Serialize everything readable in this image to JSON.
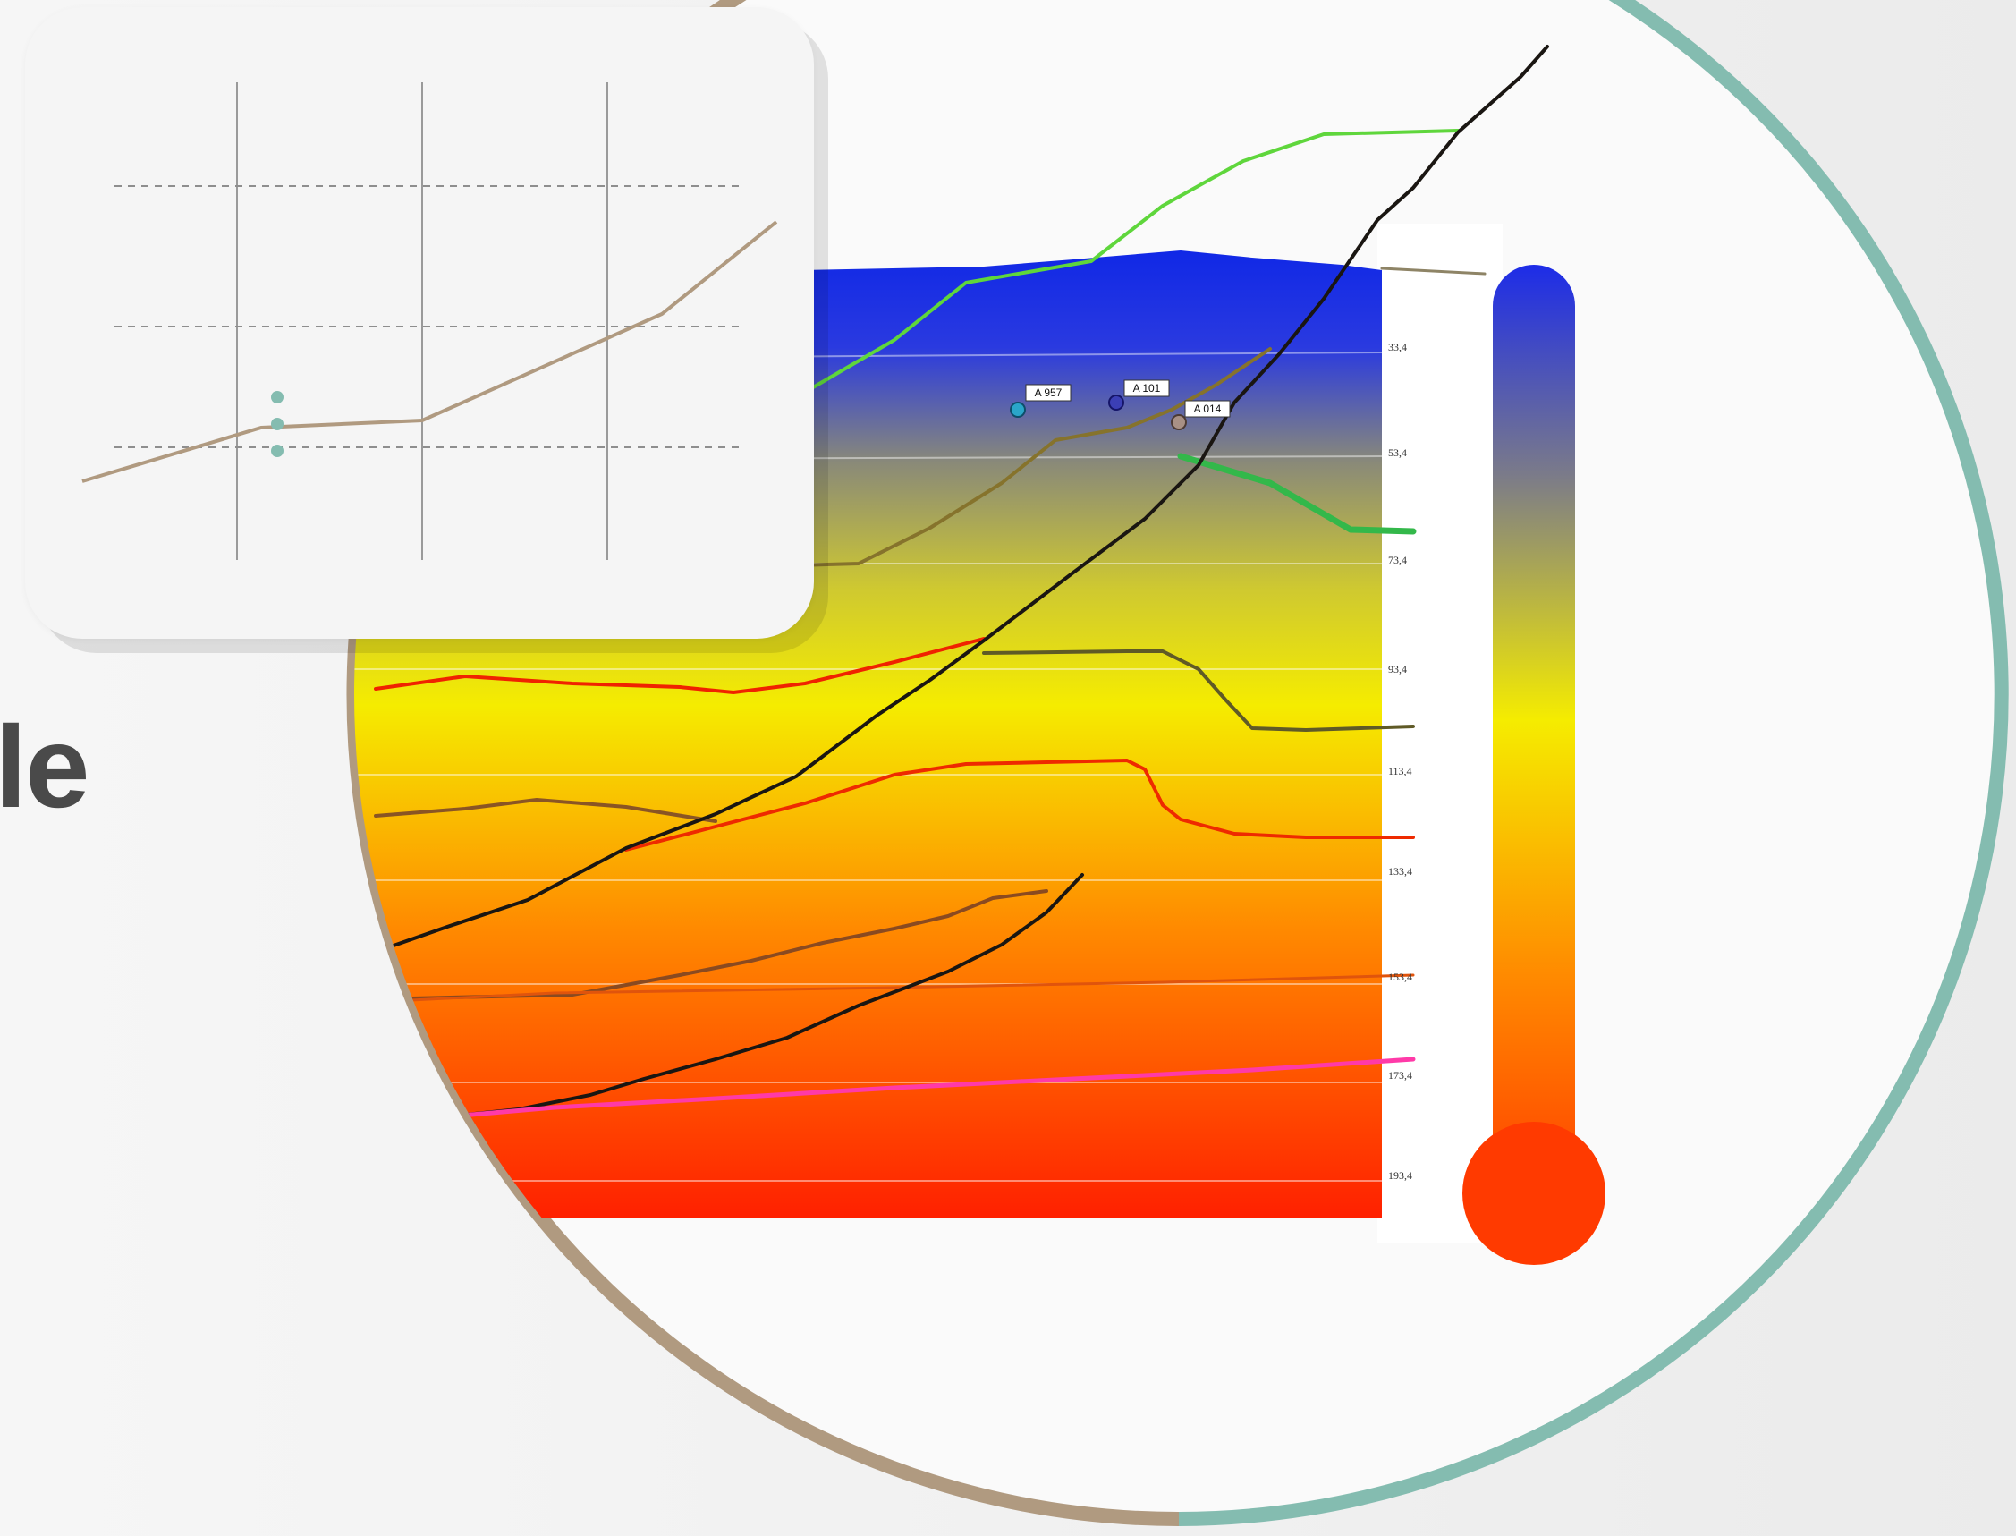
{
  "heading": {
    "text": "le"
  },
  "temperature_chart": {
    "depth_labels": [
      "33,4",
      "53,4",
      "73,4",
      "93,4",
      "113,4",
      "133,4",
      "153,4",
      "173,4",
      "193,4"
    ],
    "markers": [
      {
        "label": "A 957",
        "color": "#2aa6c9"
      },
      {
        "label": "A 101",
        "color": "#3b3fb5"
      },
      {
        "label": "A 014",
        "color": "#a89085"
      }
    ],
    "colors": {
      "gradient_top": "#1028e6",
      "gradient_mid_gray": "#8a8a78",
      "gradient_yellow": "#f5ec00",
      "gradient_orange": "#ff8a00",
      "gradient_bottom": "#ff2000"
    }
  },
  "thermometer": {
    "icon": "thermometer-icon",
    "colors": {
      "top": "#1d2ce8",
      "middle": "#f5ec00",
      "bottom": "#ff3a00"
    }
  },
  "decor": {
    "ring_colors": {
      "left": "#b09a80",
      "right": "#84bcb0"
    }
  },
  "mini_chart": {
    "line_color": "#b09a80",
    "dot_color": "#84bcb0",
    "grid_color": "#9a9a9a"
  }
}
